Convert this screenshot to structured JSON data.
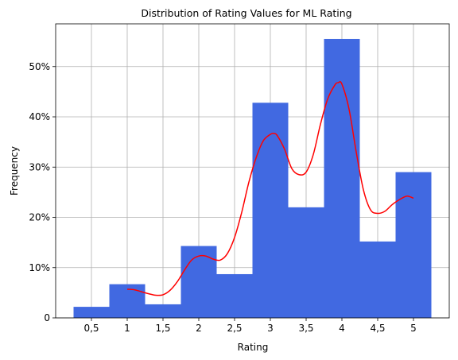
{
  "chart_data": {
    "type": "bar",
    "title": "Distribution of Rating Values for ML Rating",
    "xlabel": "Rating",
    "ylabel": "Frequency",
    "xlim": [
      0.0,
      5.5
    ],
    "ylim": [
      0,
      0.585
    ],
    "grid": true,
    "x_ticks": [
      0.5,
      1,
      1.5,
      2,
      2.5,
      3,
      3.5,
      4,
      4.5,
      5
    ],
    "x_tick_labels": [
      "0,5",
      "1",
      "1,5",
      "2",
      "2,5",
      "3",
      "3,5",
      "4",
      "4,5",
      "5"
    ],
    "y_ticks": [
      0,
      0.1,
      0.2,
      0.3,
      0.4,
      0.5
    ],
    "y_tick_labels": [
      "0",
      "10%",
      "20%",
      "30%",
      "40%",
      "50%"
    ],
    "bar_color": "#4169e1",
    "line_color": "#ff0000",
    "bins": [
      {
        "x0": 0.25,
        "x1": 0.75,
        "value": 0.022
      },
      {
        "x0": 0.75,
        "x1": 1.25,
        "value": 0.067
      },
      {
        "x0": 1.25,
        "x1": 1.75,
        "value": 0.027
      },
      {
        "x0": 1.75,
        "x1": 2.25,
        "value": 0.143
      },
      {
        "x0": 2.25,
        "x1": 2.75,
        "value": 0.087
      },
      {
        "x0": 2.75,
        "x1": 3.25,
        "value": 0.428
      },
      {
        "x0": 3.25,
        "x1": 3.75,
        "value": 0.22
      },
      {
        "x0": 3.75,
        "x1": 4.25,
        "value": 0.555
      },
      {
        "x0": 4.25,
        "x1": 4.75,
        "value": 0.152
      },
      {
        "x0": 4.75,
        "x1": 5.25,
        "value": 0.29
      }
    ],
    "kde": {
      "x": [
        1.0,
        1.1,
        1.2,
        1.3,
        1.4,
        1.5,
        1.6,
        1.7,
        1.8,
        1.9,
        2.0,
        2.1,
        2.2,
        2.3,
        2.4,
        2.5,
        2.6,
        2.7,
        2.8,
        2.9,
        3.0,
        3.05,
        3.1,
        3.2,
        3.3,
        3.4,
        3.5,
        3.6,
        3.7,
        3.8,
        3.9,
        3.95,
        4.0,
        4.1,
        4.2,
        4.3,
        4.4,
        4.5,
        4.6,
        4.7,
        4.8,
        4.9,
        4.95,
        5.0
      ],
      "y": [
        0.057,
        0.056,
        0.052,
        0.048,
        0.045,
        0.046,
        0.055,
        0.072,
        0.095,
        0.115,
        0.123,
        0.123,
        0.117,
        0.115,
        0.128,
        0.16,
        0.21,
        0.27,
        0.318,
        0.352,
        0.365,
        0.367,
        0.362,
        0.335,
        0.297,
        0.285,
        0.29,
        0.325,
        0.385,
        0.435,
        0.463,
        0.468,
        0.465,
        0.415,
        0.33,
        0.255,
        0.215,
        0.208,
        0.212,
        0.225,
        0.235,
        0.242,
        0.241,
        0.238
      ]
    }
  }
}
